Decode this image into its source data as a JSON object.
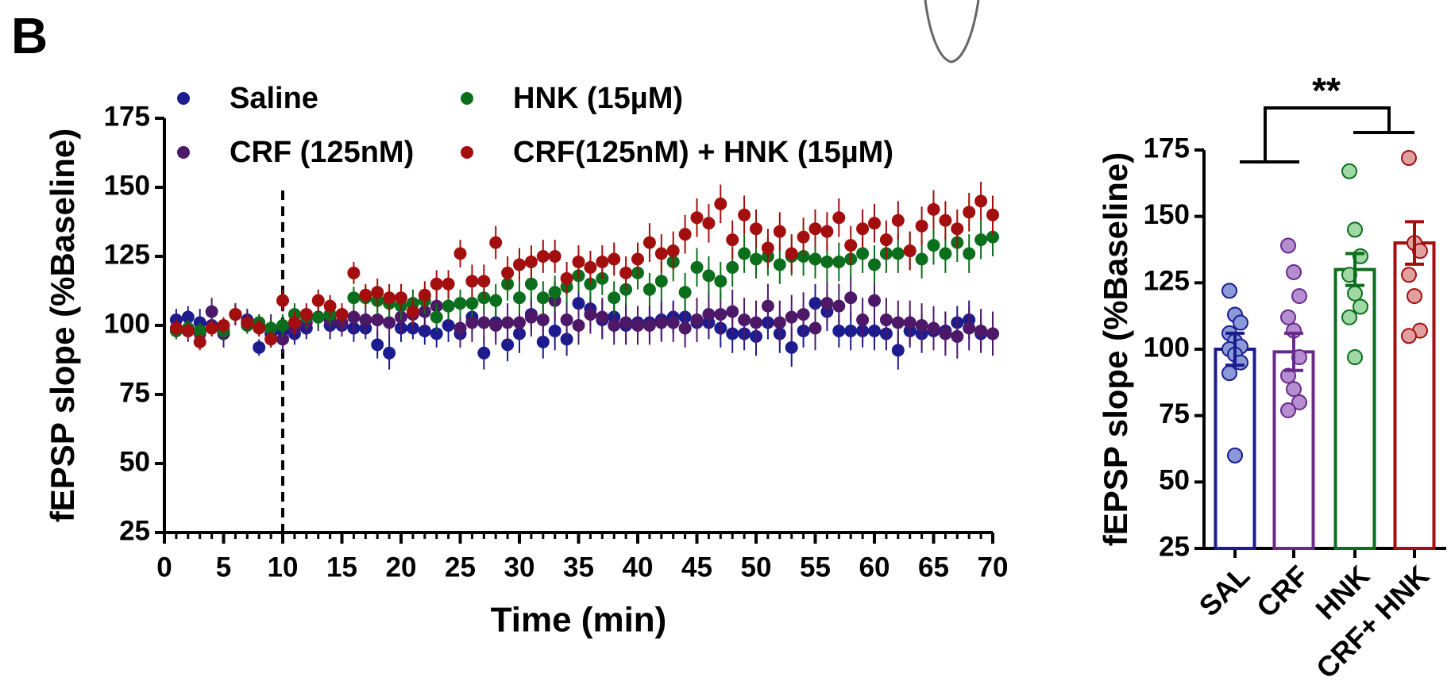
{
  "panel_label": "B",
  "chart_data": [
    {
      "type": "scatter",
      "ylabel": "fEPSP slope (%Baseline)",
      "xlabel": "Time (min)",
      "xlim": [
        0,
        70
      ],
      "ylim": [
        25,
        175
      ],
      "xticks": [
        0,
        5,
        10,
        15,
        20,
        25,
        30,
        35,
        40,
        45,
        50,
        55,
        60,
        65,
        70
      ],
      "yticks": [
        25,
        50,
        75,
        100,
        125,
        150,
        175
      ],
      "vline": 10,
      "x": [
        1,
        2,
        3,
        4,
        5,
        6,
        7,
        8,
        9,
        10,
        11,
        12,
        13,
        14,
        15,
        16,
        17,
        18,
        19,
        20,
        21,
        22,
        23,
        24,
        25,
        26,
        27,
        28,
        29,
        30,
        31,
        32,
        33,
        34,
        35,
        36,
        37,
        38,
        39,
        40,
        41,
        42,
        43,
        44,
        45,
        46,
        47,
        48,
        49,
        50,
        51,
        52,
        53,
        54,
        55,
        56,
        57,
        58,
        59,
        60,
        61,
        62,
        63,
        64,
        65,
        66,
        67,
        68,
        69,
        70
      ],
      "series": [
        {
          "name": "Saline",
          "color": "#1c1c8f",
          "values": [
            102,
            103,
            101,
            100,
            97,
            104,
            102,
            92,
            97,
            98,
            97,
            99,
            103,
            100,
            100,
            99,
            99,
            93,
            90,
            99,
            99,
            98,
            97,
            100,
            97,
            103,
            90,
            101,
            93,
            97,
            104,
            94,
            98,
            95,
            108,
            106,
            102,
            103,
            100,
            101,
            101,
            102,
            103,
            103,
            101,
            101,
            99,
            97,
            97,
            96,
            101,
            97,
            92,
            98,
            108,
            105,
            98,
            98,
            98,
            98,
            97,
            91,
            98,
            97,
            98,
            98,
            101,
            102,
            97,
            97
          ],
          "errors": [
            4,
            4,
            5,
            4,
            5,
            4,
            4,
            3,
            5,
            5,
            4,
            4,
            4,
            5,
            4,
            5,
            4,
            5,
            6,
            5,
            4,
            5,
            5,
            6,
            5,
            6,
            6,
            6,
            6,
            7,
            6,
            6,
            7,
            6,
            7,
            6,
            7,
            6,
            7,
            6,
            6,
            7,
            6,
            7,
            7,
            6,
            7,
            7,
            6,
            7,
            6,
            7,
            7,
            6,
            7,
            7,
            6,
            7,
            6,
            7,
            6,
            7,
            6,
            7,
            6,
            7,
            6,
            7,
            6,
            6
          ]
        },
        {
          "name": "CRF (125nM)",
          "color": "#4d1868",
          "values": [
            99,
            98,
            97,
            105,
            97,
            104,
            101,
            100,
            99,
            95,
            99,
            101,
            103,
            102,
            101,
            103,
            102,
            102,
            101,
            103,
            104,
            105,
            107,
            107,
            99,
            101,
            101,
            100,
            101,
            101,
            103,
            102,
            109,
            102,
            100,
            104,
            103,
            100,
            101,
            100,
            100,
            101,
            101,
            99,
            102,
            104,
            104,
            105,
            102,
            101,
            107,
            101,
            103,
            104,
            99,
            108,
            107,
            110,
            102,
            109,
            102,
            101,
            101,
            100,
            99,
            97,
            96,
            99,
            98,
            97
          ],
          "errors": [
            4,
            4,
            4,
            5,
            4,
            4,
            4,
            4,
            5,
            5,
            5,
            5,
            5,
            5,
            5,
            6,
            5,
            6,
            6,
            6,
            6,
            6,
            6,
            6,
            7,
            7,
            7,
            7,
            7,
            7,
            7,
            7,
            7,
            7,
            7,
            7,
            7,
            7,
            7,
            7,
            7,
            7,
            7,
            7,
            8,
            8,
            8,
            8,
            8,
            8,
            8,
            8,
            8,
            8,
            8,
            8,
            8,
            8,
            8,
            8,
            8,
            8,
            8,
            8,
            8,
            8,
            8,
            8,
            8,
            8
          ]
        },
        {
          "name": "HNK (15µM)",
          "color": "#0b6e1c",
          "values": [
            98,
            99,
            98,
            99,
            98,
            104,
            100,
            101,
            99,
            100,
            104,
            103,
            103,
            104,
            104,
            110,
            110,
            109,
            108,
            107,
            108,
            109,
            103,
            107,
            108,
            108,
            110,
            109,
            115,
            110,
            115,
            110,
            112,
            114,
            118,
            115,
            117,
            110,
            113,
            119,
            113,
            116,
            123,
            112,
            121,
            118,
            116,
            121,
            126,
            124,
            125,
            122,
            125,
            125,
            124,
            123,
            123,
            124,
            126,
            122,
            126,
            126,
            127,
            124,
            129,
            126,
            130,
            126,
            131,
            132
          ],
          "errors": [
            3,
            3,
            3,
            3,
            3,
            3,
            3,
            3,
            3,
            4,
            4,
            4,
            4,
            4,
            4,
            4,
            4,
            5,
            5,
            5,
            5,
            5,
            5,
            5,
            5,
            5,
            5,
            6,
            6,
            6,
            6,
            6,
            6,
            6,
            6,
            6,
            6,
            6,
            6,
            6,
            6,
            7,
            7,
            7,
            7,
            7,
            7,
            7,
            7,
            7,
            7,
            7,
            7,
            7,
            7,
            7,
            7,
            7,
            7,
            7,
            7,
            7,
            7,
            7,
            7,
            7,
            7,
            7,
            7,
            7
          ]
        },
        {
          "name": "CRF(125nM) + HNK (15µM)",
          "color": "#a30e0e",
          "values": [
            99,
            98,
            94,
            99,
            100,
            104,
            101,
            99,
            95,
            109,
            101,
            104,
            109,
            107,
            104,
            119,
            111,
            112,
            110,
            110,
            105,
            111,
            115,
            115,
            126,
            116,
            116,
            130,
            119,
            122,
            123,
            125,
            125,
            117,
            123,
            121,
            123,
            124,
            119,
            124,
            130,
            126,
            127,
            133,
            139,
            137,
            144,
            131,
            140,
            135,
            128,
            134,
            126,
            132,
            135,
            134,
            139,
            129,
            135,
            137,
            131,
            138,
            127,
            136,
            142,
            138,
            135,
            141,
            145,
            140
          ],
          "errors": [
            3,
            3,
            3,
            3,
            3,
            3,
            3,
            3,
            3,
            4,
            4,
            4,
            4,
            4,
            4,
            4,
            4,
            5,
            5,
            5,
            5,
            5,
            5,
            5,
            5,
            6,
            6,
            6,
            6,
            6,
            6,
            6,
            6,
            6,
            6,
            6,
            6,
            6,
            6,
            6,
            7,
            7,
            7,
            7,
            7,
            7,
            7,
            7,
            7,
            7,
            7,
            7,
            7,
            7,
            7,
            7,
            7,
            7,
            7,
            7,
            7,
            7,
            7,
            7,
            7,
            7,
            7,
            7,
            7,
            7
          ]
        }
      ]
    },
    {
      "type": "bar",
      "ylabel": "fEPSP slope (%Baseline)",
      "ylim": [
        25,
        175
      ],
      "yticks": [
        25,
        50,
        75,
        100,
        125,
        150,
        175
      ],
      "significance": "**",
      "categories": [
        "SAL",
        "CRF",
        "HNK",
        "CRF+ HNK"
      ],
      "values": [
        100,
        99,
        130,
        140
      ],
      "errors": [
        6,
        7,
        6,
        8
      ],
      "colors": [
        "#1c1c8f",
        "#6a2a8a",
        "#0b6e1c",
        "#a30e0e"
      ],
      "point_colors": [
        "#8a9ad8",
        "#b48ed0",
        "#9fd8a4",
        "#e0a0a0"
      ],
      "points": [
        [
          122,
          113,
          110,
          106,
          103,
          101,
          100,
          98,
          95,
          91,
          60
        ],
        [
          139,
          129,
          120,
          112,
          107,
          97,
          90,
          85,
          80,
          77
        ],
        [
          167,
          145,
          135,
          128,
          121,
          116,
          112,
          97
        ],
        [
          172,
          140,
          137,
          128,
          120,
          107,
          105
        ]
      ]
    }
  ]
}
